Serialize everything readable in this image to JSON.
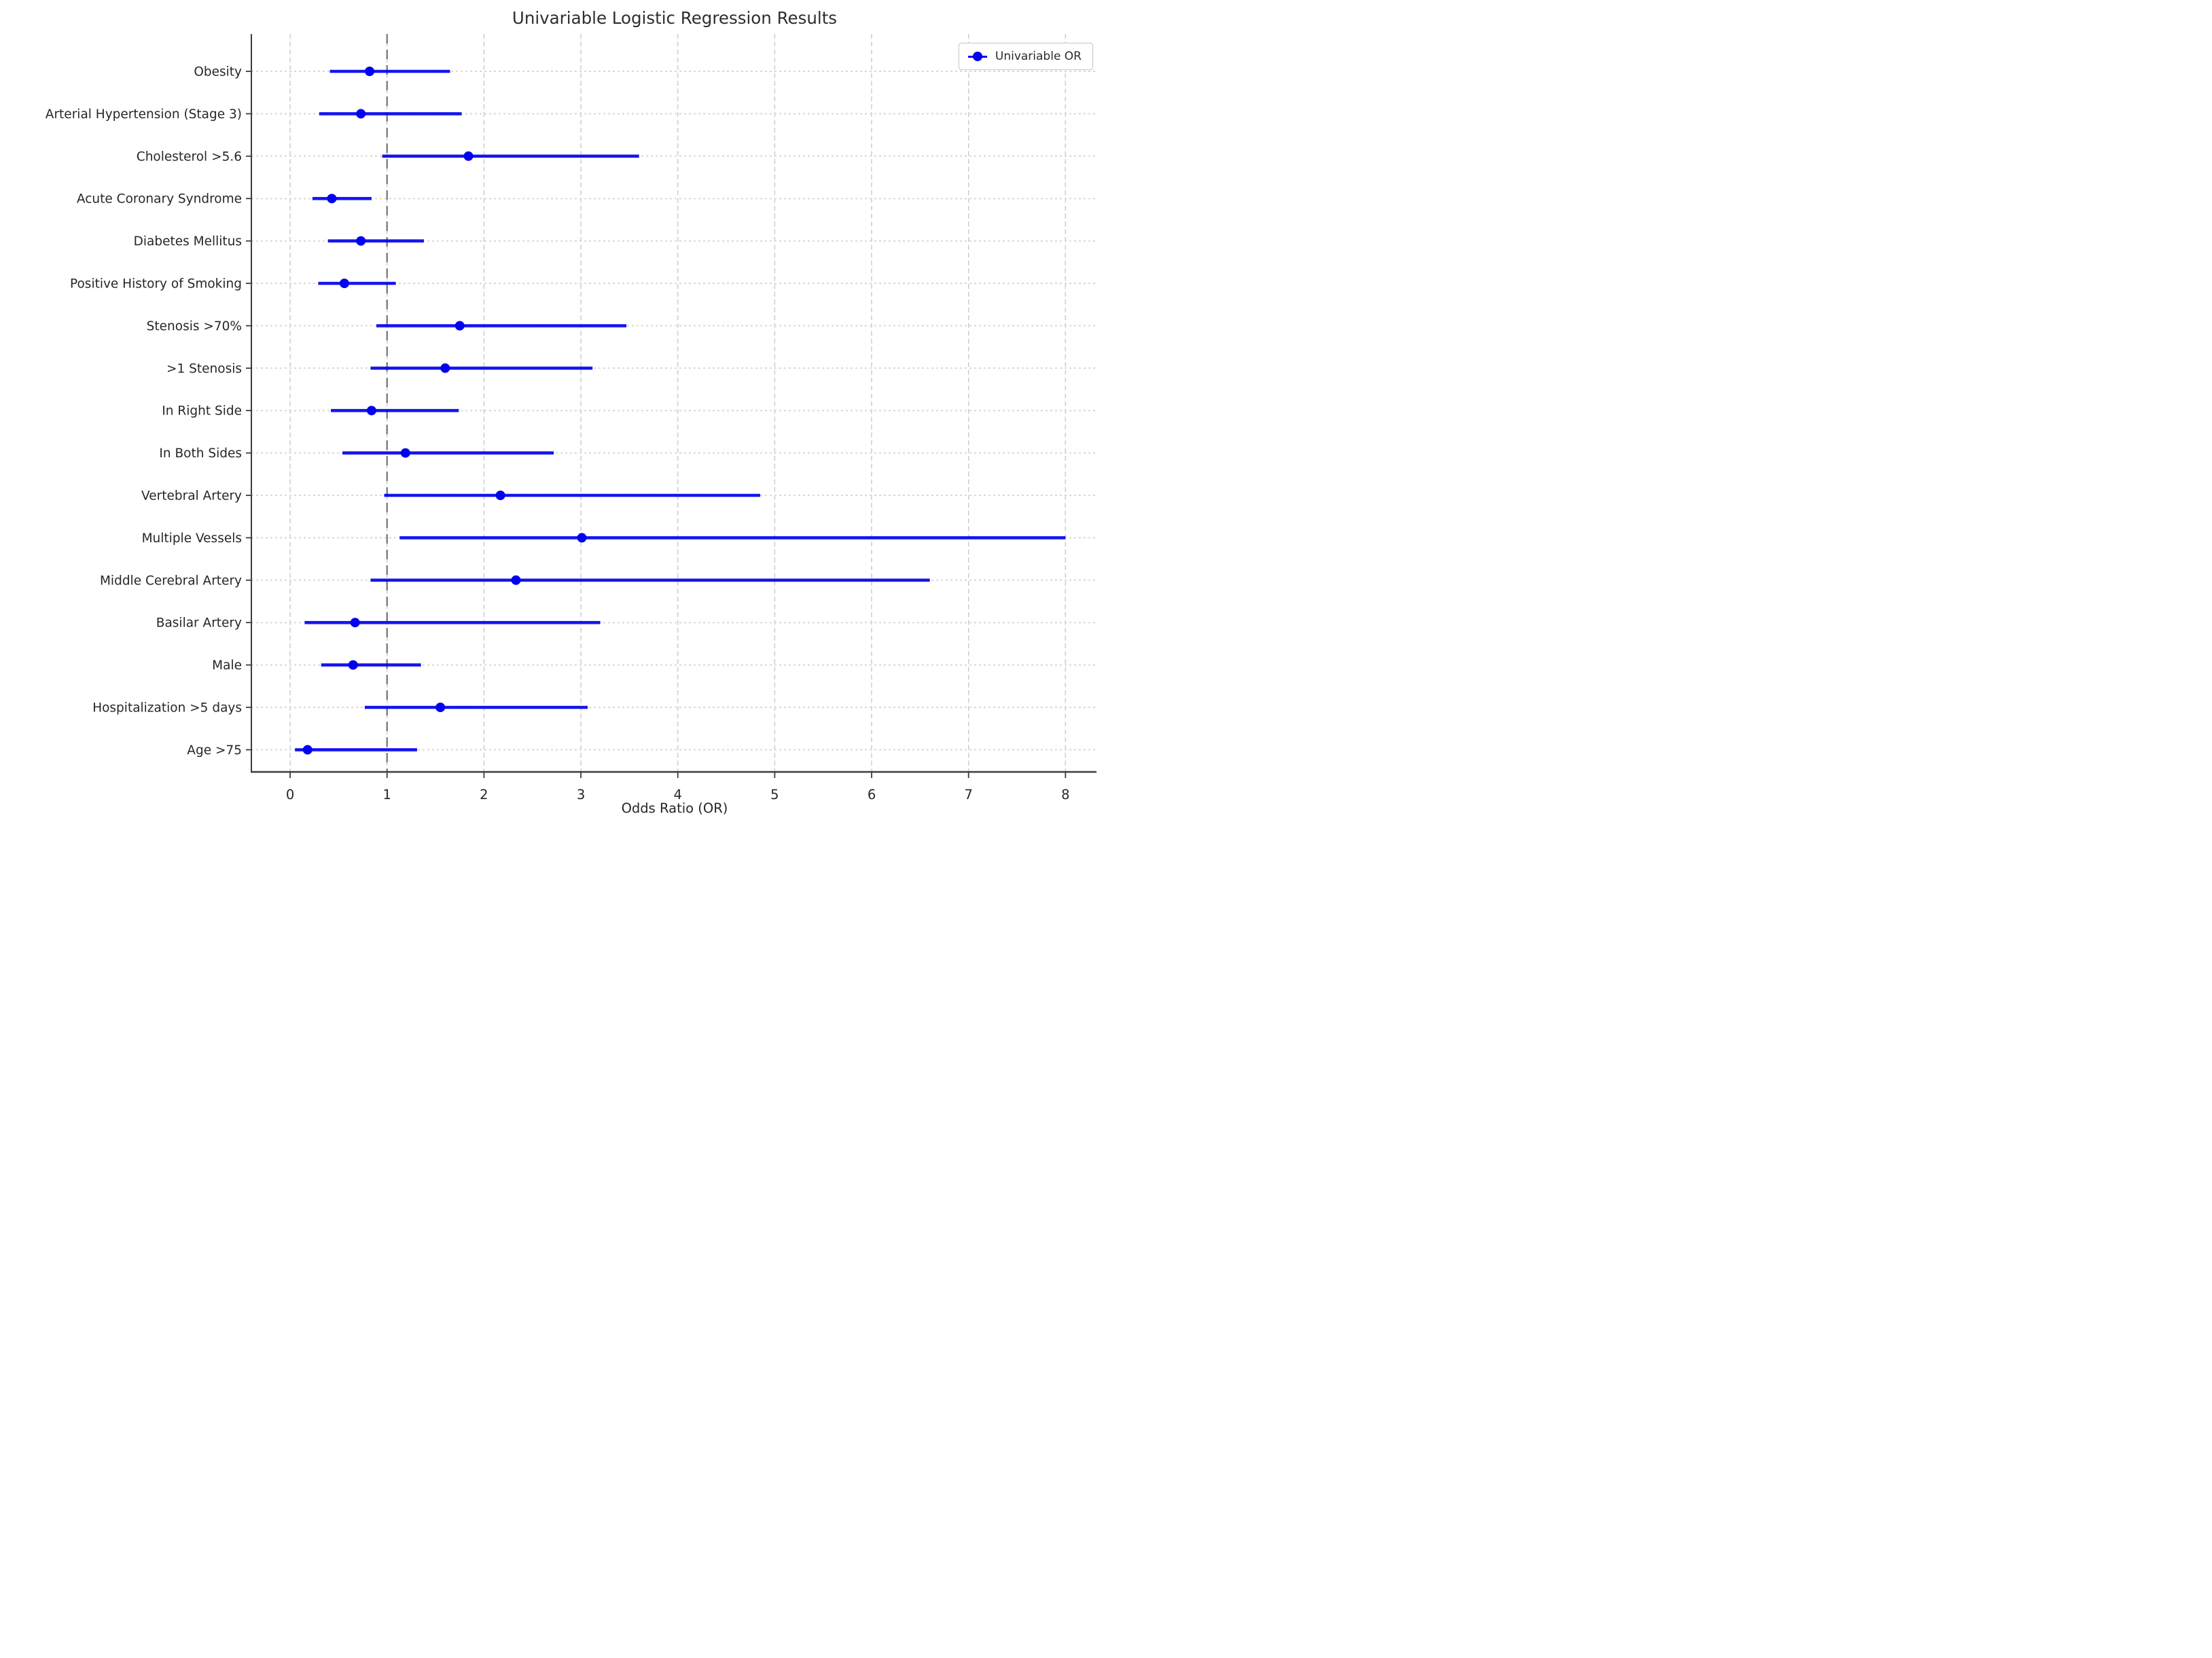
{
  "chart_data": {
    "type": "scatter",
    "subtype": "forest-errorbar",
    "title": "Univariable Logistic Regression Results",
    "xlabel": "Odds Ratio (OR)",
    "ylabel": "",
    "legend": {
      "label": "Univariable OR",
      "position": "upper-right"
    },
    "grid": true,
    "reference_line_x": 1,
    "xlim": [
      -0.4,
      8.32
    ],
    "xticks": [
      0,
      1,
      2,
      3,
      4,
      5,
      6,
      7,
      8
    ],
    "categories": [
      "Obesity",
      "Arterial Hypertension (Stage 3)",
      "Cholesterol >5.6",
      "Acute Coronary Syndrome",
      "Diabetes Mellitus",
      "Positive History of Smoking",
      "Stenosis >70%",
      ">1 Stenosis",
      "In Right Side",
      "In Both Sides",
      "Vertebral Artery",
      "Multiple Vessels",
      "Middle Cerebral Artery",
      "Basilar Artery",
      "Male",
      "Hospitalization >5 days",
      "Age >75"
    ],
    "series": [
      {
        "name": "Univariable OR",
        "points": [
          {
            "label": "Obesity",
            "or": 0.82,
            "ci_low": 0.41,
            "ci_high": 1.65
          },
          {
            "label": "Arterial Hypertension (Stage 3)",
            "or": 0.73,
            "ci_low": 0.3,
            "ci_high": 1.77
          },
          {
            "label": "Cholesterol >5.6",
            "or": 1.84,
            "ci_low": 0.95,
            "ci_high": 3.6
          },
          {
            "label": "Acute Coronary Syndrome",
            "or": 0.43,
            "ci_low": 0.23,
            "ci_high": 0.84
          },
          {
            "label": "Diabetes Mellitus",
            "or": 0.73,
            "ci_low": 0.39,
            "ci_high": 1.38
          },
          {
            "label": "Positive History of Smoking",
            "or": 0.56,
            "ci_low": 0.29,
            "ci_high": 1.09
          },
          {
            "label": "Stenosis >70%",
            "or": 1.75,
            "ci_low": 0.89,
            "ci_high": 3.47
          },
          {
            "label": ">1 Stenosis",
            "or": 1.6,
            "ci_low": 0.83,
            "ci_high": 3.12
          },
          {
            "label": "In Right Side",
            "or": 0.84,
            "ci_low": 0.42,
            "ci_high": 1.74
          },
          {
            "label": "In Both Sides",
            "or": 1.19,
            "ci_low": 0.54,
            "ci_high": 2.72
          },
          {
            "label": "Vertebral Artery",
            "or": 2.17,
            "ci_low": 0.97,
            "ci_high": 4.85
          },
          {
            "label": "Multiple Vessels",
            "or": 3.01,
            "ci_low": 1.13,
            "ci_high": 8.0
          },
          {
            "label": "Middle Cerebral Artery",
            "or": 2.33,
            "ci_low": 0.83,
            "ci_high": 6.6
          },
          {
            "label": "Basilar Artery",
            "or": 0.67,
            "ci_low": 0.15,
            "ci_high": 3.2
          },
          {
            "label": "Male",
            "or": 0.65,
            "ci_low": 0.32,
            "ci_high": 1.35
          },
          {
            "label": "Hospitalization >5 days",
            "or": 1.55,
            "ci_low": 0.77,
            "ci_high": 3.07
          },
          {
            "label": "Age >75",
            "or": 0.18,
            "ci_low": 0.05,
            "ci_high": 1.31
          }
        ]
      }
    ],
    "colors": {
      "series_blue": "#0202ee",
      "reference_line": "#7d7d7d",
      "vertical_grid": "#c9c9c9",
      "horizontal_grid": "#d8d8d8",
      "spine": "#3c3c3c",
      "text": "#262626"
    }
  }
}
